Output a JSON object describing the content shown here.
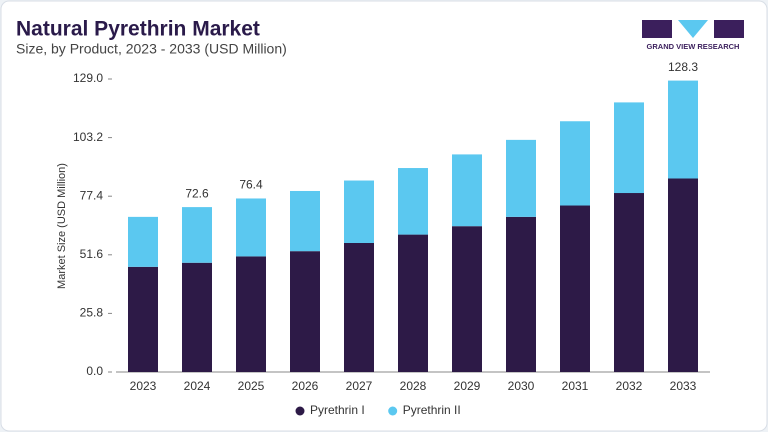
{
  "chart_data": {
    "type": "stacked_bar",
    "title": "Natural Pyrethrin Market",
    "subtitle": "Size, by Product, 2023 - 2033 (USD Million)",
    "brand": "GRAND VIEW RESEARCH",
    "y_label": "Market Size (USD Million)",
    "categories": [
      "2023",
      "2024",
      "2025",
      "2026",
      "2027",
      "2028",
      "2029",
      "2030",
      "2031",
      "2032",
      "2033"
    ],
    "series": [
      {
        "name": "Pyrethrin I",
        "color": "#2d1a47",
        "values": [
          46.3,
          48.1,
          50.9,
          53.2,
          56.8,
          60.5,
          64.2,
          68.3,
          73.3,
          78.8,
          85.2
        ]
      },
      {
        "name": "Pyrethrin II",
        "color": "#5bc8f0",
        "values": [
          22.0,
          24.5,
          25.5,
          26.5,
          27.5,
          29.3,
          31.6,
          33.9,
          37.1,
          39.9,
          43.1
        ]
      }
    ],
    "totals": [
      null,
      72.6,
      76.4,
      null,
      null,
      null,
      null,
      null,
      null,
      null,
      128.3
    ],
    "ylim": [
      0,
      129
    ],
    "yticks": [
      {
        "value": 0,
        "label": "0.0"
      },
      25.8,
      51.6,
      77.4,
      103.2,
      {
        "value": 129,
        "label": "129.0"
      }
    ],
    "grid": false
  }
}
